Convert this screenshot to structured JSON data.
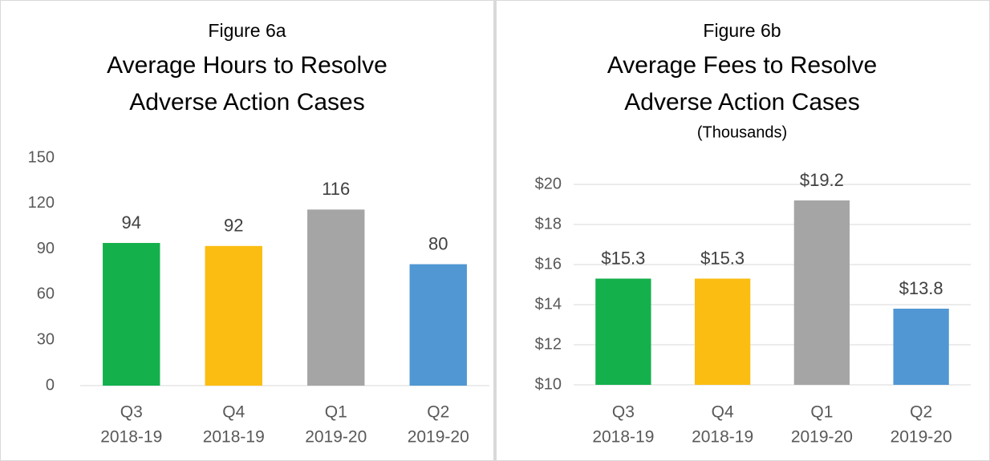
{
  "chart_data": [
    {
      "type": "bar",
      "figure": "Figure 6a",
      "title": [
        "Average Hours to Resolve",
        "Adverse Action Cases"
      ],
      "categories": [
        [
          "Q3",
          "2018-19"
        ],
        [
          "Q4",
          "2018-19"
        ],
        [
          "Q1",
          "2019-20"
        ],
        [
          "Q2",
          "2019-20"
        ]
      ],
      "values": [
        94,
        92,
        116,
        80
      ],
      "colors": [
        "#14b04c",
        "#fbbd12",
        "#a5a5a5",
        "#5097d3"
      ],
      "ylim": [
        0,
        150
      ],
      "yticks": [
        0,
        30,
        60,
        90,
        120,
        150
      ],
      "grid": false
    },
    {
      "type": "bar",
      "figure": "Figure 6b",
      "title": [
        "Average Fees to Resolve",
        "Adverse Action Cases"
      ],
      "subtitle": "(Thousands)",
      "categories": [
        [
          "Q3",
          "2018-19"
        ],
        [
          "Q4",
          "2018-19"
        ],
        [
          "Q1",
          "2019-20"
        ],
        [
          "Q2",
          "2019-20"
        ]
      ],
      "values": [
        15.3,
        15.3,
        19.2,
        13.8
      ],
      "value_labels": [
        "$15.3",
        "$15.3",
        "$19.2",
        "$13.8"
      ],
      "colors": [
        "#14b04c",
        "#fbbd12",
        "#a5a5a5",
        "#5097d3"
      ],
      "ylim": [
        10,
        20
      ],
      "yticks": [
        {
          "value": 10,
          "label": "$10"
        },
        {
          "value": 12,
          "label": "$12"
        },
        {
          "value": 14,
          "label": "$14"
        },
        {
          "value": 16,
          "label": "$16"
        },
        {
          "value": 18,
          "label": "$18"
        },
        {
          "value": 20,
          "label": "$20"
        }
      ],
      "grid": true
    }
  ]
}
